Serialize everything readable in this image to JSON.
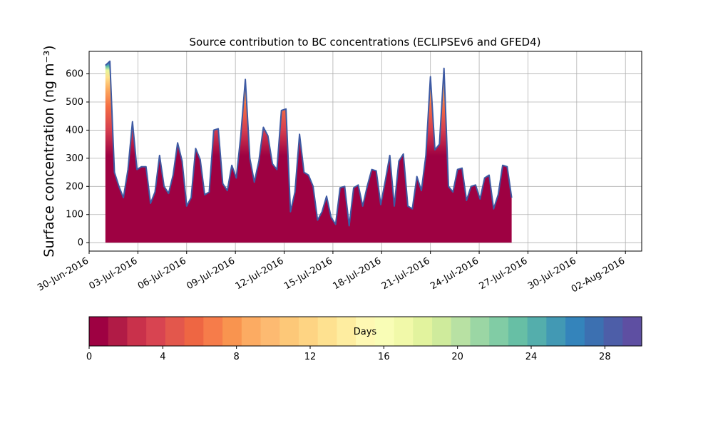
{
  "chart_data": {
    "type": "area",
    "title": "Source contribution to BC concentrations (ECLIPSEv6 and GFED4)",
    "ylabel": "Surface concentration (ng m⁻³)",
    "xlabel": "",
    "grid": true,
    "stacked_by": "Days",
    "x_start": "01-Jul-2016",
    "x_end": "26-Jul-2016",
    "xlim": [
      "30-Jun-2016",
      "03-Aug-2016"
    ],
    "ylim": [
      -30,
      680
    ],
    "x_ticks": [
      "30-Jun-2016",
      "03-Jul-2016",
      "06-Jul-2016",
      "09-Jul-2016",
      "12-Jul-2016",
      "15-Jul-2016",
      "18-Jul-2016",
      "21-Jul-2016",
      "24-Jul-2016",
      "27-Jul-2016",
      "30-Jul-2016",
      "02-Aug-2016"
    ],
    "y_ticks": [
      0,
      100,
      200,
      300,
      400,
      500,
      600
    ],
    "total_profile": [
      [
        "01-Jul-2016",
        630
      ],
      [
        "01-Jul-2016",
        645
      ],
      [
        "01-Jul-2016",
        250
      ],
      [
        "02-Jul-2016",
        200
      ],
      [
        "02-Jul-2016",
        160
      ],
      [
        "02-Jul-2016",
        260
      ],
      [
        "02-Jul-2016",
        430
      ],
      [
        "03-Jul-2016",
        260
      ],
      [
        "03-Jul-2016",
        270
      ],
      [
        "03-Jul-2016",
        270
      ],
      [
        "04-Jul-2016",
        140
      ],
      [
        "04-Jul-2016",
        180
      ],
      [
        "04-Jul-2016",
        310
      ],
      [
        "05-Jul-2016",
        200
      ],
      [
        "05-Jul-2016",
        175
      ],
      [
        "05-Jul-2016",
        240
      ],
      [
        "06-Jul-2016",
        355
      ],
      [
        "06-Jul-2016",
        290
      ],
      [
        "06-Jul-2016",
        130
      ],
      [
        "07-Jul-2016",
        160
      ],
      [
        "07-Jul-2016",
        335
      ],
      [
        "07-Jul-2016",
        295
      ],
      [
        "07-Jul-2016",
        170
      ],
      [
        "08-Jul-2016",
        180
      ],
      [
        "08-Jul-2016",
        400
      ],
      [
        "08-Jul-2016",
        405
      ],
      [
        "08-Jul-2016",
        210
      ],
      [
        "09-Jul-2016",
        185
      ],
      [
        "09-Jul-2016",
        275
      ],
      [
        "09-Jul-2016",
        230
      ],
      [
        "09-Jul-2016",
        380
      ],
      [
        "10-Jul-2016",
        580
      ],
      [
        "10-Jul-2016",
        300
      ],
      [
        "10-Jul-2016",
        215
      ],
      [
        "10-Jul-2016",
        290
      ],
      [
        "10-Jul-2016",
        410
      ],
      [
        "11-Jul-2016",
        380
      ],
      [
        "11-Jul-2016",
        280
      ],
      [
        "11-Jul-2016",
        260
      ],
      [
        "11-Jul-2016",
        470
      ],
      [
        "12-Jul-2016",
        475
      ],
      [
        "12-Jul-2016",
        110
      ],
      [
        "12-Jul-2016",
        180
      ],
      [
        "13-Jul-2016",
        385
      ],
      [
        "13-Jul-2016",
        250
      ],
      [
        "13-Jul-2016",
        240
      ],
      [
        "14-Jul-2016",
        200
      ],
      [
        "14-Jul-2016",
        80
      ],
      [
        "14-Jul-2016",
        110
      ],
      [
        "15-Jul-2016",
        165
      ],
      [
        "15-Jul-2016",
        90
      ],
      [
        "15-Jul-2016",
        65
      ],
      [
        "16-Jul-2016",
        195
      ],
      [
        "16-Jul-2016",
        200
      ],
      [
        "16-Jul-2016",
        60
      ],
      [
        "17-Jul-2016",
        195
      ],
      [
        "17-Jul-2016",
        205
      ],
      [
        "17-Jul-2016",
        130
      ],
      [
        "17-Jul-2016",
        200
      ],
      [
        "18-Jul-2016",
        260
      ],
      [
        "18-Jul-2016",
        255
      ],
      [
        "18-Jul-2016",
        135
      ],
      [
        "19-Jul-2016",
        220
      ],
      [
        "19-Jul-2016",
        310
      ],
      [
        "19-Jul-2016",
        130
      ],
      [
        "20-Jul-2016",
        290
      ],
      [
        "20-Jul-2016",
        315
      ],
      [
        "20-Jul-2016",
        130
      ],
      [
        "20-Jul-2016",
        120
      ],
      [
        "21-Jul-2016",
        235
      ],
      [
        "21-Jul-2016",
        185
      ],
      [
        "21-Jul-2016",
        310
      ],
      [
        "22-Jul-2016",
        590
      ],
      [
        "22-Jul-2016",
        330
      ],
      [
        "22-Jul-2016",
        350
      ],
      [
        "22-Jul-2016",
        620
      ],
      [
        "23-Jul-2016",
        200
      ],
      [
        "23-Jul-2016",
        180
      ],
      [
        "23-Jul-2016",
        260
      ],
      [
        "23-Jul-2016",
        265
      ],
      [
        "24-Jul-2016",
        150
      ],
      [
        "24-Jul-2016",
        200
      ],
      [
        "24-Jul-2016",
        205
      ],
      [
        "24-Jul-2016",
        155
      ],
      [
        "25-Jul-2016",
        230
      ],
      [
        "25-Jul-2016",
        240
      ],
      [
        "25-Jul-2016",
        120
      ],
      [
        "25-Jul-2016",
        170
      ],
      [
        "26-Jul-2016",
        275
      ],
      [
        "26-Jul-2016",
        270
      ],
      [
        "26-Jul-2016",
        160
      ]
    ],
    "colorbar": {
      "label": "Days",
      "min": 0,
      "max": 30,
      "ticks": [
        0,
        4,
        8,
        12,
        16,
        20,
        24,
        28
      ],
      "colors": [
        "#9e0142",
        "#b11b46",
        "#c9314b",
        "#d84451",
        "#e3574c",
        "#ee6643",
        "#f67c4a",
        "#f9944f",
        "#fcab62",
        "#fdba71",
        "#fdc878",
        "#fed483",
        "#fee190",
        "#feeda0",
        "#fef8b3",
        "#f9fdb6",
        "#f1f9a9",
        "#e2f39e",
        "#cfeb9c",
        "#b8e1a3",
        "#9bd6a4",
        "#81cca5",
        "#67bfa5",
        "#54aeac",
        "#4299b4",
        "#3484bb",
        "#3c70b1",
        "#4d5ea8",
        "#5e4fa2"
      ]
    }
  }
}
